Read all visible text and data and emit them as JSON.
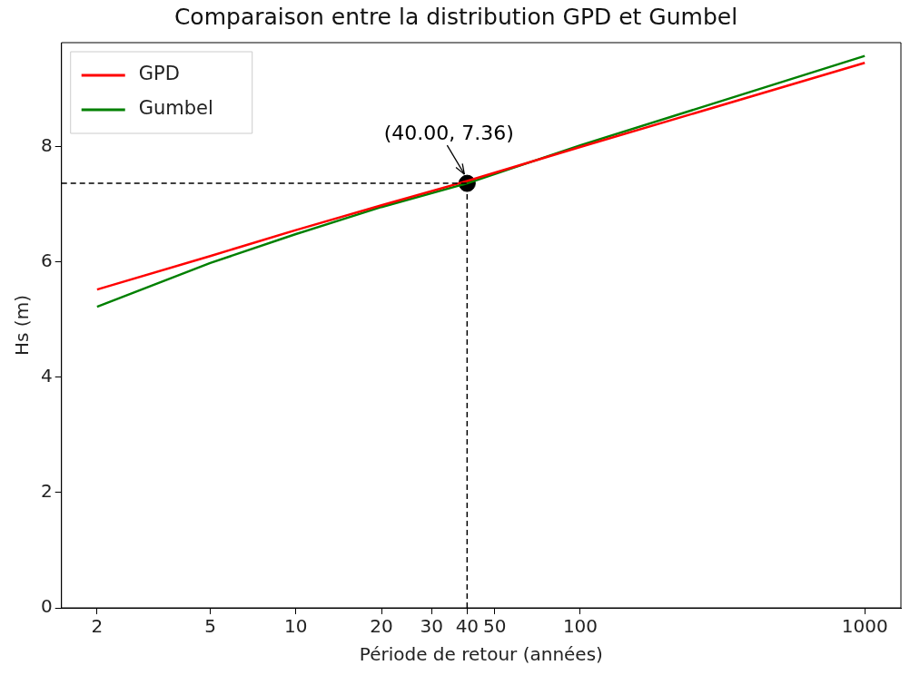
{
  "chart_data": {
    "type": "line",
    "title": "Comparaison entre la distribution GPD et Gumbel",
    "xlabel": "Période de retour (années)",
    "ylabel": "Hs (m)",
    "x": [
      2,
      5,
      10,
      20,
      40,
      100,
      1000
    ],
    "series": [
      {
        "name": "GPD",
        "color": "#ff0000",
        "values": [
          5.52,
          6.1,
          6.55,
          6.98,
          7.4,
          7.99,
          9.45
        ]
      },
      {
        "name": "Gumbel",
        "color": "#008000",
        "values": [
          5.22,
          5.98,
          6.48,
          6.95,
          7.36,
          8.02,
          9.57
        ]
      },
      {
        "type": "scatter",
        "marker": "circle",
        "color": "#000000",
        "x": [
          40
        ],
        "values": [
          7.36
        ]
      }
    ],
    "log": "x",
    "xlim": [
      1.5,
      1340
    ],
    "xticks": [
      2,
      5,
      10,
      20,
      30,
      40,
      50,
      100,
      1000
    ],
    "ylim": [
      0,
      9.8
    ],
    "yticks": [
      0,
      2,
      4,
      6,
      8
    ],
    "grid": false,
    "legend": "top left",
    "marker": "none",
    "line_style": "solid",
    "ref_lines": [
      {
        "axis": "x",
        "value": 40,
        "color": "#000000",
        "line_style": "dashed"
      },
      {
        "axis": "y",
        "value": 7.36,
        "color": "#000000",
        "line_style": "dashed"
      }
    ],
    "annotations": [
      {
        "text": "(40.00, 7.36)",
        "x": 40,
        "y": 7.36
      }
    ]
  }
}
